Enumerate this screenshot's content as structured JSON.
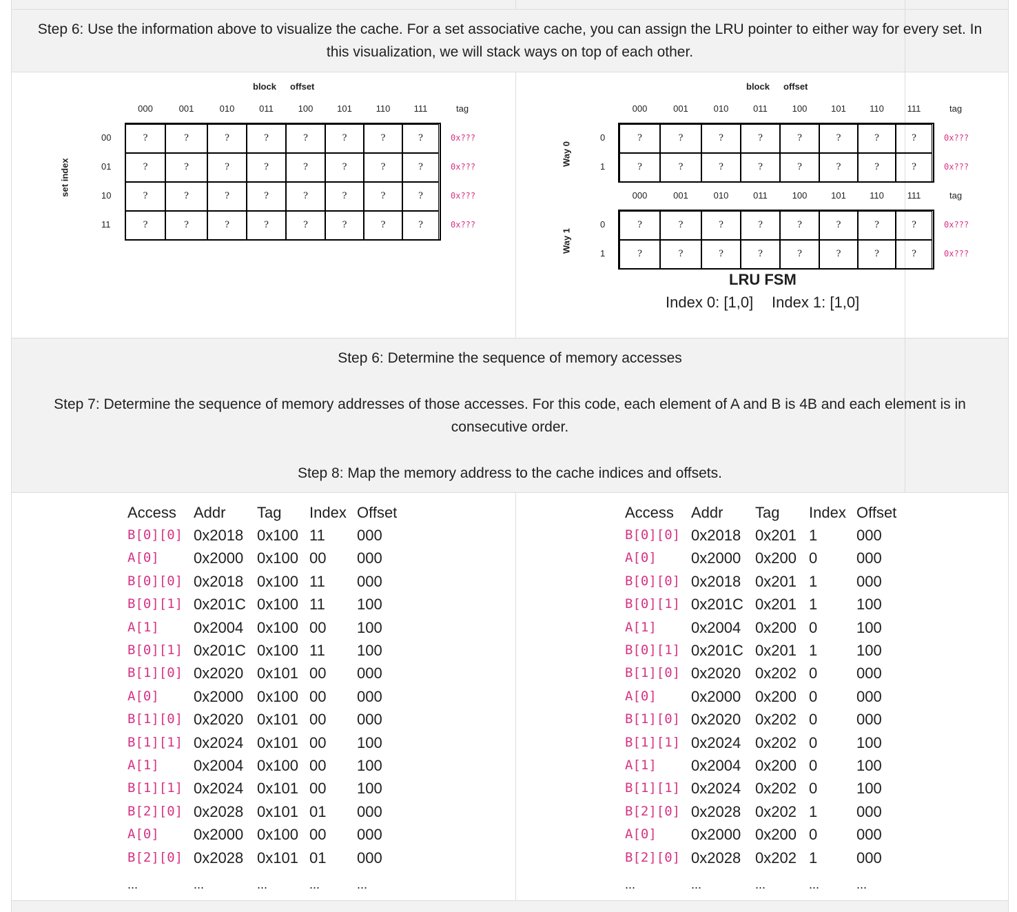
{
  "steps": {
    "step6a": "Step 6: Use the information above to visualize the cache. For a set associative cache, you can assign the LRU pointer to either way for every set. In this visualization, we will stack ways on top of each other.",
    "step6b": "Step 6: Determine the sequence of memory accesses",
    "step7": "Step 7: Determine the sequence of memory addresses of those accesses. For this code, each element of A and B is 4B and each element is in consecutive order.",
    "step8": "Step 8: Map the memory address to the cache indices and offsets."
  },
  "cache": {
    "block_label": "block",
    "offset_label": "offset",
    "tag_label": "tag",
    "set_index_label": "set index",
    "offsets": [
      "000",
      "001",
      "010",
      "011",
      "100",
      "101",
      "110",
      "111"
    ],
    "cell_value": "?",
    "tag_value": "0x???",
    "left_rows": [
      "00",
      "01",
      "10",
      "11"
    ],
    "way0_label": "Way 0",
    "way1_label": "Way 1",
    "way_rows": [
      "0",
      "1"
    ],
    "lru_title": "LRU FSM",
    "lru_index0": "Index 0: [1,0]",
    "lru_index1": "Index 1: [1,0]"
  },
  "left_table": {
    "headers": [
      "Access",
      "Addr",
      "Tag",
      "Index",
      "Offset"
    ],
    "rows": [
      [
        "B[0][0]",
        "0x2018",
        "0x100",
        "11",
        "000"
      ],
      [
        "A[0]",
        "0x2000",
        "0x100",
        "00",
        "000"
      ],
      [
        "B[0][0]",
        "0x2018",
        "0x100",
        "11",
        "000"
      ],
      [
        "B[0][1]",
        "0x201C",
        "0x100",
        "11",
        "100"
      ],
      [
        "A[1]",
        "0x2004",
        "0x100",
        "00",
        "100"
      ],
      [
        "B[0][1]",
        "0x201C",
        "0x100",
        "11",
        "100"
      ],
      [
        "B[1][0]",
        "0x2020",
        "0x101",
        "00",
        "000"
      ],
      [
        "A[0]",
        "0x2000",
        "0x100",
        "00",
        "000"
      ],
      [
        "B[1][0]",
        "0x2020",
        "0x101",
        "00",
        "000"
      ],
      [
        "B[1][1]",
        "0x2024",
        "0x101",
        "00",
        "100"
      ],
      [
        "A[1]",
        "0x2004",
        "0x100",
        "00",
        "100"
      ],
      [
        "B[1][1]",
        "0x2024",
        "0x101",
        "00",
        "100"
      ],
      [
        "B[2][0]",
        "0x2028",
        "0x101",
        "01",
        "000"
      ],
      [
        "A[0]",
        "0x2000",
        "0x100",
        "00",
        "000"
      ],
      [
        "B[2][0]",
        "0x2028",
        "0x101",
        "01",
        "000"
      ]
    ],
    "ellipsis": "..."
  },
  "right_table": {
    "headers": [
      "Access",
      "Addr",
      "Tag",
      "Index",
      "Offset"
    ],
    "rows": [
      [
        "B[0][0]",
        "0x2018",
        "0x201",
        "1",
        "000"
      ],
      [
        "A[0]",
        "0x2000",
        "0x200",
        "0",
        "000"
      ],
      [
        "B[0][0]",
        "0x2018",
        "0x201",
        "1",
        "000"
      ],
      [
        "B[0][1]",
        "0x201C",
        "0x201",
        "1",
        "100"
      ],
      [
        "A[1]",
        "0x2004",
        "0x200",
        "0",
        "100"
      ],
      [
        "B[0][1]",
        "0x201C",
        "0x201",
        "1",
        "100"
      ],
      [
        "B[1][0]",
        "0x2020",
        "0x202",
        "0",
        "000"
      ],
      [
        "A[0]",
        "0x2000",
        "0x200",
        "0",
        "000"
      ],
      [
        "B[1][0]",
        "0x2020",
        "0x202",
        "0",
        "000"
      ],
      [
        "B[1][1]",
        "0x2024",
        "0x202",
        "0",
        "100"
      ],
      [
        "A[1]",
        "0x2004",
        "0x200",
        "0",
        "100"
      ],
      [
        "B[1][1]",
        "0x2024",
        "0x202",
        "0",
        "100"
      ],
      [
        "B[2][0]",
        "0x2028",
        "0x202",
        "1",
        "000"
      ],
      [
        "A[0]",
        "0x2000",
        "0x200",
        "0",
        "000"
      ],
      [
        "B[2][0]",
        "0x2028",
        "0x202",
        "1",
        "000"
      ]
    ],
    "ellipsis": "..."
  },
  "colors": {
    "access": "#d63384",
    "header_bg": "#f2f2f2",
    "border": "#dcdcdc"
  }
}
